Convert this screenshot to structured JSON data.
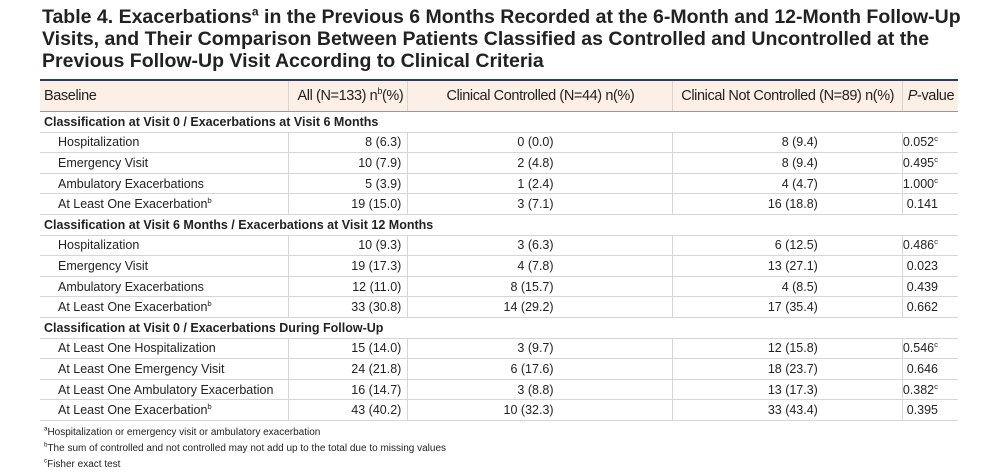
{
  "title": {
    "before": "Table 4. Exacerbations",
    "sup": "a",
    "after": " in the Previous 6 Months Recorded at the 6-Month and 12-Month Follow-Up Visits, and Their Comparison Between Patients Classified as Controlled and Uncontrolled at the Previous Follow-Up Visit According to Clinical Criteria"
  },
  "header": {
    "baseline": "Baseline",
    "all": {
      "before": "All (N=133) n",
      "sup": "b",
      "after": "(%)"
    },
    "controlled": "Clinical Controlled (N=44) n(%)",
    "not_controlled": "Clinical Not Controlled (N=89) n(%)",
    "p": {
      "italic": "P",
      "after": "-value"
    }
  },
  "sections": [
    {
      "heading": "Classification at Visit 0 / Exacerbations at Visit 6 Months",
      "rows": [
        {
          "label": "Hospitalization",
          "all": "8 (6.3)",
          "controlled": "0 (0.0)",
          "not_controlled": "8 (9.4)",
          "p": "0.052",
          "p_sup": "c"
        },
        {
          "label": "Emergency Visit",
          "all": "10 (7.9)",
          "controlled": "2 (4.8)",
          "not_controlled": "8 (9.4)",
          "p": "0.495",
          "p_sup": "c"
        },
        {
          "label": "Ambulatory Exacerbations",
          "all": "5 (3.9)",
          "controlled": "1 (2.4)",
          "not_controlled": "4 (4.7)",
          "p": "1.000",
          "p_sup": "c"
        },
        {
          "label": "At Least One Exacerbation",
          "label_sup": "b",
          "all": "19 (15.0)",
          "controlled": "3 (7.1)",
          "not_controlled": "16 (18.8)",
          "p": "0.141"
        }
      ]
    },
    {
      "heading": "Classification at Visit 6 Months / Exacerbations at Visit 12 Months",
      "rows": [
        {
          "label": "Hospitalization",
          "all": "10 (9.3)",
          "controlled": "3 (6.3)",
          "not_controlled": "6 (12.5)",
          "p": "0.486",
          "p_sup": "c"
        },
        {
          "label": "Emergency Visit",
          "all": "19 (17.3)",
          "controlled": "4 (7.8)",
          "not_controlled": "13 (27.1)",
          "p": "0.023"
        },
        {
          "label": "Ambulatory Exacerbations",
          "all": "12 (11.0)",
          "controlled": "8 (15.7)",
          "not_controlled": "4 (8.5)",
          "p": "0.439"
        },
        {
          "label": "At Least One Exacerbation",
          "label_sup": "b",
          "all": "33 (30.8)",
          "controlled": "14 (29.2)",
          "not_controlled": "17 (35.4)",
          "p": "0.662"
        }
      ]
    },
    {
      "heading": "Classification at Visit 0 / Exacerbations During Follow-Up",
      "rows": [
        {
          "label": "At Least One Hospitalization",
          "all": "15 (14.0)",
          "controlled": "3 (9.7)",
          "not_controlled": "12 (15.8)",
          "p": "0.546",
          "p_sup": "c"
        },
        {
          "label": "At Least One Emergency Visit",
          "all": "24 (21.8)",
          "controlled": "6 (17.6)",
          "not_controlled": "18 (23.7)",
          "p": "0.646"
        },
        {
          "label": "At Least One Ambulatory Exacerbation",
          "all": "16 (14.7)",
          "controlled": "3 (8.8)",
          "not_controlled": "13 (17.3)",
          "p": "0.382",
          "p_sup": "c"
        },
        {
          "label": "At Least One Exacerbation",
          "label_sup": "b",
          "all": "43 (40.2)",
          "controlled": "10 (32.3)",
          "not_controlled": "33 (43.4)",
          "p": "0.395"
        }
      ]
    }
  ],
  "footnotes": [
    {
      "mark": "a",
      "text": "Hospitalization or emergency visit or ambulatory exacerbation"
    },
    {
      "mark": "b",
      "text": "The sum of controlled and not controlled may not add up to the total due to missing values"
    },
    {
      "mark": "c",
      "text": "Fisher exact test"
    }
  ]
}
